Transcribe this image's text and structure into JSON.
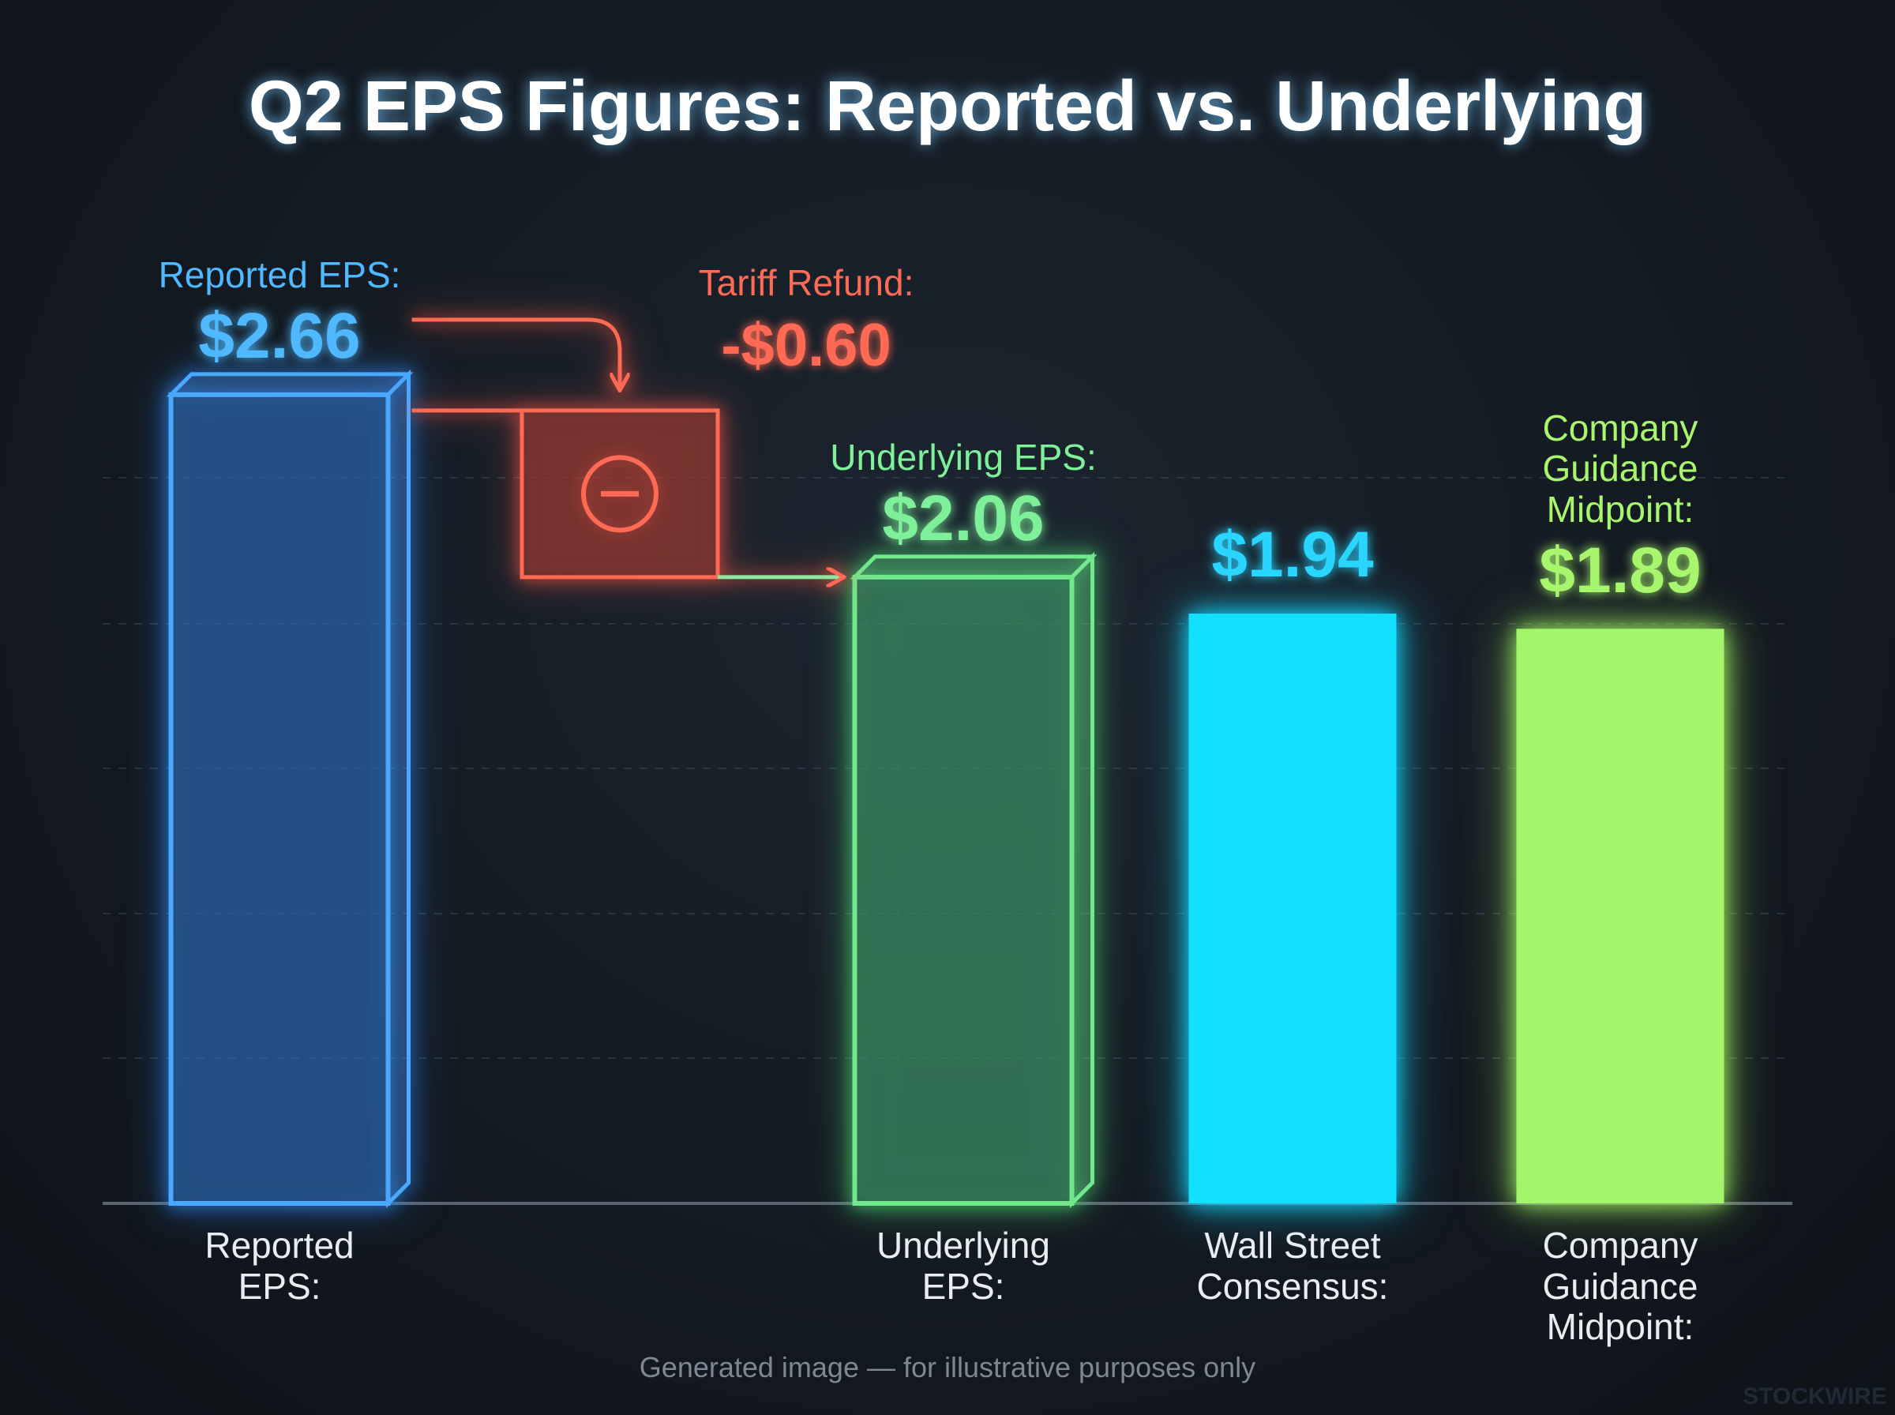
{
  "chart_data": {
    "type": "bar",
    "title": "Q2 EPS Figures: Reported vs. Underlying",
    "categories": [
      "Reported EPS:",
      "Underlying EPS:",
      "Wall Street Consensus:",
      "Company Guidance Midpoint:"
    ],
    "header_labels": [
      "Reported EPS:",
      "Underlying EPS:",
      null,
      "Company Guidance Midpoint:"
    ],
    "values": [
      2.66,
      2.06,
      1.94,
      1.89
    ],
    "value_labels": [
      "$2.66",
      "$2.06",
      "$1.94",
      "$1.89"
    ],
    "colors": [
      "#4aa8ff",
      "#72e88c",
      "#12e0ff",
      "#a3f56a"
    ],
    "label_colors": [
      "#4fb8ff",
      "#7ef09a",
      "#2ad6ff",
      "#a8f56e"
    ],
    "fills": [
      "outline",
      "outline",
      "solid",
      "solid"
    ],
    "annotation": {
      "text": "Tariff Refund:",
      "value": -0.6,
      "value_label": "-$0.60",
      "color": "#ff6a55"
    },
    "footer": "Generated image — for illustrative purposes only",
    "watermark": "STOCKWIRE"
  }
}
